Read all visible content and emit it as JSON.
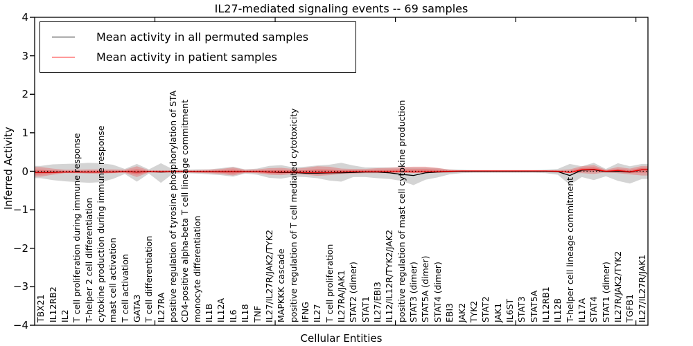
{
  "title": "IL27-mediated signaling events -- 69 samples",
  "axes": {
    "y_label": "Inferred Activity",
    "x_label": "Cellular Entities",
    "y_ticks": [
      "4",
      "3",
      "2",
      "1",
      "0",
      "−1",
      "−2",
      "−3",
      "−4"
    ],
    "x_tick_positions": [
      10,
      20,
      30,
      40,
      50
    ]
  },
  "legend": {
    "entries": [
      {
        "label": "Mean activity in all permuted samples",
        "color": "#000000"
      },
      {
        "label": "Mean activity in patient samples",
        "color": "#ff0000"
      }
    ]
  },
  "colors": {
    "permuted_band": "#999999",
    "patient_band": "#ee3333",
    "mean_permuted_line": "#000000",
    "mean_patient_line": "#ff0000",
    "baseline": "#000000",
    "axis": "#000000"
  },
  "chart_data": {
    "type": "line",
    "title": "IL27-mediated signaling events -- 69 samples",
    "xlabel": "Cellular Entities",
    "ylabel": "Inferred Activity",
    "ylim": [
      -4,
      4
    ],
    "baseline": 0,
    "legend_position": "upper left",
    "categories": [
      "TBX21",
      "IL12RB2",
      "IL2",
      "T cell proliferation during immune response",
      "T-helper 2 cell differentiation",
      "cytokine production during immune response",
      "mast cell activation",
      "T cell activation",
      "GATA3",
      "T cell differentiation",
      "IL27RA",
      "positive regulation of tyrosine phosphorylation of STA",
      "CD4-positive alpha-beta T cell lineage commitment",
      "monocyte differentiation",
      "IL1B",
      "IL12A",
      "IL6",
      "IL18",
      "TNF",
      "IL27/IL27R/JAK2/TYK2",
      "MAPKKK cascade",
      "positive regulation of T cell mediated cytotoxicity",
      "IFNG",
      "IL27",
      "T cell proliferation",
      "IL27RA/JAK1",
      "STAT2 (dimer)",
      "STAT1",
      "IL27/EBI3",
      "IL12/IL12R/TYK2/JAK2",
      "positive regulation of mast cell cytokine production",
      "STAT3 (dimer)",
      "STAT5A (dimer)",
      "STAT4 (dimer)",
      "EBI3",
      "JAK2",
      "TYK2",
      "STAT2",
      "JAK1",
      "IL6ST",
      "STAT3",
      "STAT5A",
      "IL12RB1",
      "IL12B",
      "T-helper cell lineage commitment",
      "IL17A",
      "STAT4",
      "STAT1 (dimer)",
      "IL27R/JAK2/TYK2",
      "TGFB1",
      "IL27/IL27R/JAK1"
    ],
    "series": [
      {
        "name": "Mean activity in all permuted samples",
        "role": "mean_permuted",
        "values": [
          -0.03,
          -0.03,
          -0.02,
          -0.02,
          -0.02,
          -0.02,
          -0.02,
          -0.01,
          -0.02,
          -0.01,
          -0.02,
          -0.01,
          -0.01,
          -0.01,
          -0.01,
          -0.01,
          -0.01,
          -0.01,
          -0.01,
          -0.02,
          -0.03,
          -0.03,
          -0.05,
          -0.05,
          -0.04,
          -0.04,
          -0.03,
          -0.02,
          -0.02,
          -0.04,
          -0.08,
          -0.11,
          -0.04,
          -0.02,
          -0.01,
          0,
          0,
          0,
          0,
          0,
          0,
          0,
          0,
          -0.01,
          -0.11,
          0.03,
          0.04,
          -0.01,
          0,
          -0.02,
          0.04
        ]
      },
      {
        "name": "Mean activity in patient samples",
        "role": "mean_patient",
        "values": [
          -0.03,
          -0.03,
          -0.02,
          -0.02,
          -0.02,
          -0.02,
          -0.02,
          -0.01,
          -0.02,
          -0.01,
          -0.01,
          -0.01,
          -0.01,
          -0.01,
          -0.01,
          -0.01,
          -0.01,
          -0.01,
          -0.01,
          -0.02,
          -0.02,
          -0.02,
          -0.03,
          -0.03,
          -0.03,
          -0.02,
          -0.01,
          -0.01,
          -0.01,
          -0.01,
          -0.01,
          -0.02,
          -0.01,
          -0.01,
          0,
          0.01,
          0.01,
          0.01,
          0.01,
          0.01,
          0.01,
          0.01,
          0.01,
          0,
          -0.03,
          0.04,
          0.05,
          0,
          0.02,
          -0.01,
          0.04
        ]
      },
      {
        "name": "Permuted activity range upper",
        "role": "permuted_upper",
        "values": [
          0.14,
          0.18,
          0.19,
          0.2,
          0.22,
          0.21,
          0.17,
          0.06,
          0.19,
          0.05,
          0.21,
          0.05,
          0.04,
          0.05,
          0.05,
          0.08,
          0.12,
          0.05,
          0.07,
          0.14,
          0.16,
          0.1,
          0.12,
          0.15,
          0.17,
          0.22,
          0.15,
          0.1,
          0.1,
          0.1,
          0.1,
          0.1,
          0.1,
          0.08,
          0.05,
          0.04,
          0.03,
          0.03,
          0.03,
          0.03,
          0.03,
          0.03,
          0.04,
          0.06,
          0.19,
          0.13,
          0.22,
          0.06,
          0.21,
          0.13,
          0.19
        ]
      },
      {
        "name": "Permuted activity range lower",
        "role": "permuted_lower",
        "values": [
          -0.18,
          -0.23,
          -0.26,
          -0.28,
          -0.3,
          -0.28,
          -0.2,
          -0.07,
          -0.27,
          -0.06,
          -0.3,
          -0.06,
          -0.05,
          -0.06,
          -0.08,
          -0.1,
          -0.14,
          -0.06,
          -0.09,
          -0.17,
          -0.19,
          -0.14,
          -0.15,
          -0.18,
          -0.24,
          -0.27,
          -0.15,
          -0.15,
          -0.18,
          -0.2,
          -0.25,
          -0.36,
          -0.22,
          -0.16,
          -0.08,
          -0.05,
          -0.04,
          -0.04,
          -0.04,
          -0.04,
          -0.04,
          -0.04,
          -0.05,
          -0.09,
          -0.35,
          -0.15,
          -0.23,
          -0.13,
          -0.25,
          -0.32,
          -0.2
        ]
      },
      {
        "name": "Patient activity range upper",
        "role": "patient_upper",
        "values": [
          0.11,
          0.07,
          0.04,
          0.04,
          0.05,
          0.05,
          0.05,
          0.04,
          0.13,
          0.03,
          0.03,
          0.03,
          0.03,
          0.03,
          0.04,
          0.06,
          0.1,
          0.04,
          0.05,
          0.08,
          0.09,
          0.06,
          0.09,
          0.13,
          0.12,
          0.07,
          0.06,
          0.06,
          0.08,
          0.09,
          0.11,
          0.12,
          0.12,
          0.09,
          0.04,
          0.02,
          0.02,
          0.02,
          0.02,
          0.02,
          0.02,
          0.02,
          0.02,
          0.03,
          0.05,
          0.13,
          0.16,
          0.04,
          0.11,
          0.07,
          0.14
        ]
      },
      {
        "name": "Patient activity range lower",
        "role": "patient_lower",
        "values": [
          -0.14,
          -0.09,
          -0.05,
          -0.05,
          -0.06,
          -0.06,
          -0.05,
          -0.04,
          -0.15,
          -0.03,
          -0.04,
          -0.03,
          -0.03,
          -0.04,
          -0.05,
          -0.07,
          -0.11,
          -0.04,
          -0.05,
          -0.09,
          -0.1,
          -0.07,
          -0.09,
          -0.12,
          -0.1,
          -0.07,
          -0.06,
          -0.05,
          -0.05,
          -0.05,
          -0.04,
          -0.04,
          -0.05,
          -0.04,
          -0.03,
          -0.02,
          -0.02,
          -0.02,
          -0.02,
          -0.02,
          -0.02,
          -0.02,
          -0.02,
          -0.03,
          -0.05,
          -0.05,
          -0.07,
          -0.03,
          -0.05,
          -0.08,
          -0.11
        ]
      }
    ]
  }
}
